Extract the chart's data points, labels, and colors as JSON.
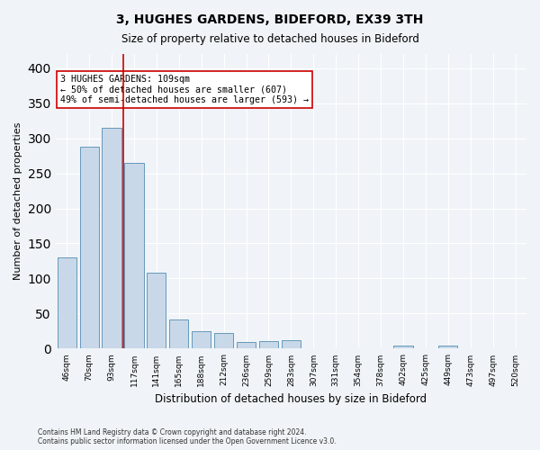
{
  "title1": "3, HUGHES GARDENS, BIDEFORD, EX39 3TH",
  "title2": "Size of property relative to detached houses in Bideford",
  "xlabel": "Distribution of detached houses by size in Bideford",
  "ylabel": "Number of detached properties",
  "footnote": "Contains HM Land Registry data © Crown copyright and database right 2024.\nContains public sector information licensed under the Open Government Licence v3.0.",
  "bar_labels": [
    "46sqm",
    "70sqm",
    "93sqm",
    "117sqm",
    "141sqm",
    "165sqm",
    "188sqm",
    "212sqm",
    "236sqm",
    "259sqm",
    "283sqm",
    "307sqm",
    "331sqm",
    "354sqm",
    "378sqm",
    "402sqm",
    "425sqm",
    "449sqm",
    "473sqm",
    "497sqm",
    "520sqm"
  ],
  "bar_values": [
    130,
    288,
    315,
    265,
    108,
    42,
    25,
    22,
    10,
    11,
    12,
    0,
    0,
    0,
    0,
    5,
    0,
    5,
    0,
    0,
    0
  ],
  "bar_color": "#c8d8e8",
  "bar_edge_color": "#6699bb",
  "vline_x": 2.5,
  "vline_color": "#cc0000",
  "annotation_text": "3 HUGHES GARDENS: 109sqm\n← 50% of detached houses are smaller (607)\n49% of semi-detached houses are larger (593) →",
  "annotation_box_color": "#ffffff",
  "annotation_box_edgecolor": "#cc0000",
  "ylim": [
    0,
    420
  ],
  "yticks": [
    0,
    50,
    100,
    150,
    200,
    250,
    300,
    350,
    400
  ],
  "background_color": "#f0f4f8",
  "grid_color": "#ffffff"
}
